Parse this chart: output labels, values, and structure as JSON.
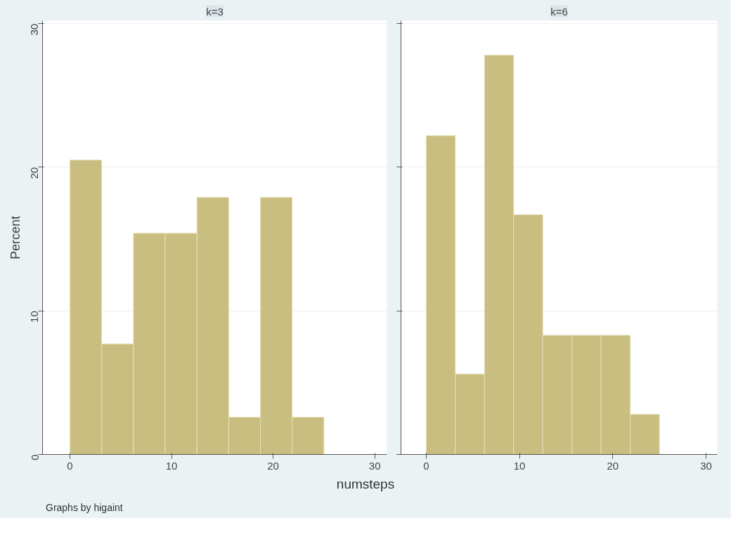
{
  "chart_data": [
    {
      "type": "histogram",
      "title": "k=3",
      "ylabel": "Percent",
      "xlabel": "numsteps",
      "annotations": [
        "Graphs by higaint"
      ],
      "bins": [
        0,
        3.125,
        6.25,
        9.375,
        12.5,
        15.625,
        18.75,
        21.875,
        25
      ],
      "values": [
        20.5,
        7.7,
        15.4,
        15.4,
        17.9,
        2.6,
        17.9,
        2.6
      ],
      "color": "#c9bd7f",
      "xlim": [
        -2.7,
        31.2
      ],
      "ylim": [
        0,
        30.2
      ],
      "xticks": [
        0,
        10,
        20,
        30
      ],
      "yticks": [
        0,
        10,
        20,
        30
      ],
      "grid": "y"
    },
    {
      "type": "histogram",
      "title": "k=6",
      "bins": [
        0,
        3.125,
        6.25,
        9.375,
        12.5,
        15.625,
        18.75,
        21.875,
        25
      ],
      "values": [
        22.2,
        5.6,
        27.8,
        16.7,
        8.3,
        8.3,
        8.3,
        2.8
      ],
      "color": "#c9bd7f",
      "xlim": [
        -2.7,
        31.2
      ],
      "ylim": [
        0,
        30.2
      ],
      "xticks": [
        0,
        10,
        20,
        30
      ],
      "yticks": [
        0,
        10,
        20,
        30
      ],
      "grid": "y",
      "tick_labels": "x"
    }
  ]
}
